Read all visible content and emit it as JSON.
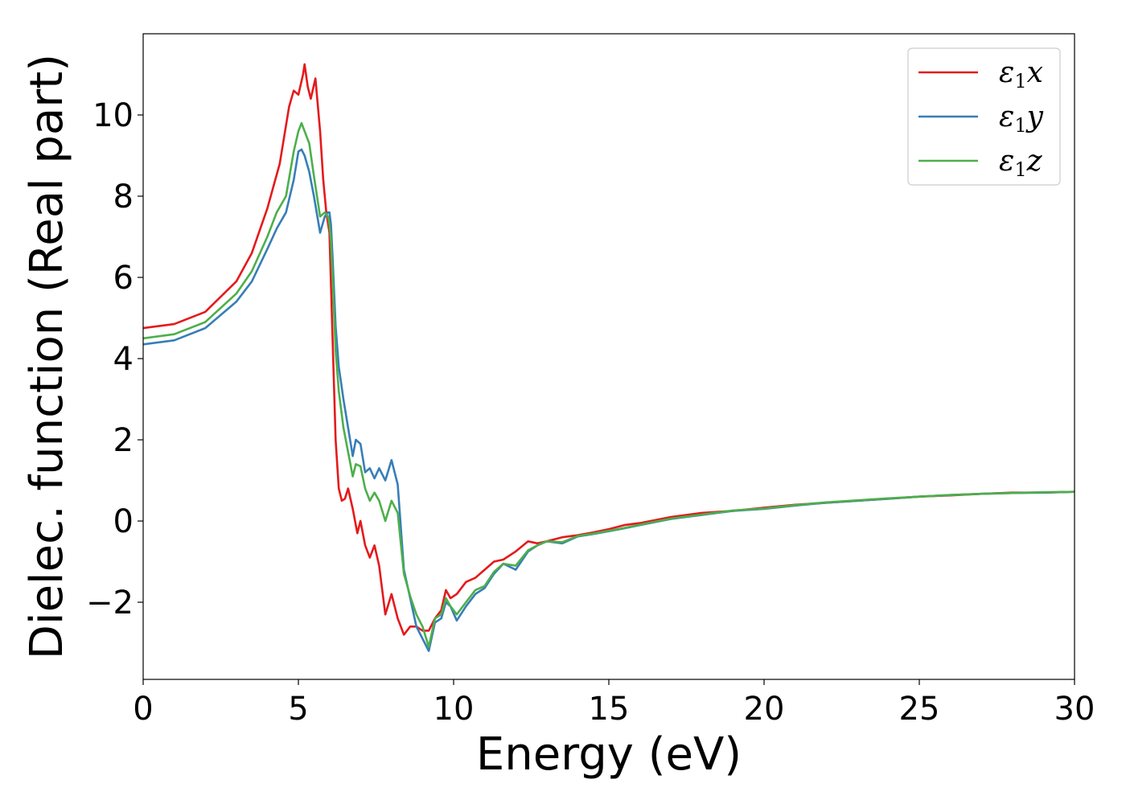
{
  "chart_data": {
    "type": "line",
    "xlabel": "Energy (eV)",
    "ylabel": "Dielec. function (Real part)",
    "xlim": [
      0,
      30
    ],
    "ylim": [
      -3.9,
      12.0
    ],
    "xticks": [
      0,
      5,
      10,
      15,
      20,
      25,
      30
    ],
    "xtick_labels": [
      "0",
      "5",
      "10",
      "15",
      "20",
      "25",
      "30"
    ],
    "yticks": [
      -2,
      0,
      2,
      4,
      6,
      8,
      10
    ],
    "ytick_labels": [
      "−2",
      "0",
      "2",
      "4",
      "6",
      "8",
      "10"
    ],
    "grid": false,
    "legend_position": "top-right",
    "series": [
      {
        "name": "ε1x",
        "legend_base": "ε",
        "legend_sub": "1",
        "legend_suffix": "x",
        "color": "#e41a1c",
        "x": [
          0,
          1,
          2,
          3,
          3.5,
          4,
          4.4,
          4.7,
          4.85,
          5.0,
          5.15,
          5.2,
          5.3,
          5.4,
          5.55,
          5.7,
          5.8,
          5.9,
          6.0,
          6.1,
          6.2,
          6.3,
          6.4,
          6.5,
          6.6,
          6.75,
          6.9,
          7.0,
          7.15,
          7.3,
          7.45,
          7.6,
          7.8,
          8.0,
          8.2,
          8.4,
          8.6,
          8.8,
          9.0,
          9.2,
          9.4,
          9.6,
          9.75,
          9.9,
          10.1,
          10.4,
          10.7,
          11.0,
          11.3,
          11.6,
          12.0,
          12.4,
          12.7,
          13.0,
          13.5,
          14.0,
          14.5,
          15.0,
          15.5,
          16.0,
          17.0,
          18.0,
          19.0,
          20.0,
          21.0,
          22.0,
          23.0,
          24.0,
          25.0,
          26.0,
          27.0,
          28.0,
          29.0,
          30.0
        ],
        "y": [
          4.75,
          4.85,
          5.15,
          5.9,
          6.6,
          7.7,
          8.8,
          10.2,
          10.6,
          10.5,
          11.0,
          11.25,
          10.7,
          10.4,
          10.9,
          9.6,
          8.4,
          7.6,
          7.1,
          4.5,
          2.0,
          0.8,
          0.5,
          0.55,
          0.8,
          0.3,
          -0.3,
          0.0,
          -0.6,
          -0.9,
          -0.6,
          -1.1,
          -2.3,
          -1.8,
          -2.4,
          -2.8,
          -2.6,
          -2.6,
          -2.7,
          -2.7,
          -2.4,
          -2.2,
          -1.7,
          -1.9,
          -1.8,
          -1.5,
          -1.4,
          -1.2,
          -1.0,
          -0.95,
          -0.75,
          -0.5,
          -0.55,
          -0.5,
          -0.4,
          -0.35,
          -0.28,
          -0.2,
          -0.1,
          -0.05,
          0.1,
          0.2,
          0.25,
          0.33,
          0.4,
          0.45,
          0.5,
          0.55,
          0.6,
          0.63,
          0.67,
          0.7,
          0.7,
          0.72
        ]
      },
      {
        "name": "ε1y",
        "legend_base": "ε",
        "legend_sub": "1",
        "legend_suffix": "y",
        "color": "#377eb8",
        "x": [
          0,
          1,
          2,
          3,
          3.5,
          4,
          4.3,
          4.6,
          4.85,
          5.0,
          5.1,
          5.2,
          5.35,
          5.5,
          5.7,
          5.85,
          5.95,
          6.0,
          6.05,
          6.1,
          6.2,
          6.3,
          6.45,
          6.6,
          6.75,
          6.85,
          7.0,
          7.15,
          7.3,
          7.45,
          7.6,
          7.8,
          8.0,
          8.2,
          8.4,
          8.6,
          8.8,
          9.0,
          9.2,
          9.4,
          9.6,
          9.75,
          9.9,
          10.1,
          10.4,
          10.7,
          11.0,
          11.3,
          11.6,
          12.0,
          12.4,
          12.7,
          13.0,
          13.5,
          14.0,
          14.5,
          15.0,
          15.5,
          16.0,
          17.0,
          18.0,
          19.0,
          20.0,
          21.0,
          22.0,
          23.0,
          24.0,
          25.0,
          26.0,
          27.0,
          28.0,
          29.0,
          30.0
        ],
        "y": [
          4.35,
          4.45,
          4.75,
          5.4,
          5.9,
          6.7,
          7.2,
          7.6,
          8.4,
          9.1,
          9.15,
          9.0,
          8.6,
          8.0,
          7.1,
          7.5,
          7.6,
          7.6,
          7.3,
          6.5,
          4.8,
          3.8,
          3.0,
          2.3,
          1.6,
          2.0,
          1.9,
          1.2,
          1.3,
          1.05,
          1.3,
          1.0,
          1.5,
          0.9,
          -1.2,
          -1.9,
          -2.6,
          -2.9,
          -3.2,
          -2.5,
          -2.4,
          -2.0,
          -2.1,
          -2.45,
          -2.1,
          -1.8,
          -1.65,
          -1.3,
          -1.05,
          -1.2,
          -0.75,
          -0.6,
          -0.5,
          -0.55,
          -0.38,
          -0.32,
          -0.25,
          -0.18,
          -0.1,
          0.05,
          0.15,
          0.25,
          0.3,
          0.38,
          0.45,
          0.5,
          0.55,
          0.6,
          0.64,
          0.67,
          0.69,
          0.7,
          0.72
        ]
      },
      {
        "name": "ε1z",
        "legend_base": "ε",
        "legend_sub": "1",
        "legend_suffix": "z",
        "color": "#4daf4a",
        "x": [
          0,
          1,
          2,
          3,
          3.5,
          4,
          4.3,
          4.6,
          4.85,
          5.0,
          5.1,
          5.2,
          5.35,
          5.5,
          5.7,
          5.85,
          5.95,
          6.0,
          6.05,
          6.1,
          6.2,
          6.3,
          6.45,
          6.6,
          6.75,
          6.85,
          7.0,
          7.15,
          7.3,
          7.45,
          7.6,
          7.8,
          8.0,
          8.2,
          8.4,
          8.6,
          8.8,
          9.0,
          9.2,
          9.4,
          9.6,
          9.75,
          9.9,
          10.1,
          10.4,
          10.7,
          11.0,
          11.3,
          11.6,
          12.0,
          12.4,
          12.7,
          13.0,
          13.5,
          14.0,
          14.5,
          15.0,
          15.5,
          16.0,
          17.0,
          18.0,
          19.0,
          20.0,
          21.0,
          22.0,
          23.0,
          24.0,
          25.0,
          26.0,
          27.0,
          28.0,
          29.0,
          30.0
        ],
        "y": [
          4.5,
          4.6,
          4.9,
          5.6,
          6.15,
          7.0,
          7.6,
          8.0,
          9.1,
          9.6,
          9.8,
          9.6,
          9.3,
          8.5,
          7.5,
          7.6,
          7.5,
          7.3,
          6.9,
          6.0,
          4.2,
          3.2,
          2.3,
          1.7,
          1.1,
          1.4,
          1.35,
          0.8,
          0.5,
          0.7,
          0.5,
          0.0,
          0.5,
          0.2,
          -1.3,
          -1.85,
          -2.3,
          -2.6,
          -3.1,
          -2.4,
          -2.3,
          -1.9,
          -2.1,
          -2.3,
          -2.0,
          -1.7,
          -1.6,
          -1.25,
          -1.05,
          -1.1,
          -0.72,
          -0.6,
          -0.5,
          -0.52,
          -0.37,
          -0.31,
          -0.24,
          -0.17,
          -0.09,
          0.06,
          0.16,
          0.26,
          0.31,
          0.39,
          0.46,
          0.51,
          0.56,
          0.6,
          0.64,
          0.67,
          0.69,
          0.71,
          0.72
        ]
      }
    ]
  }
}
